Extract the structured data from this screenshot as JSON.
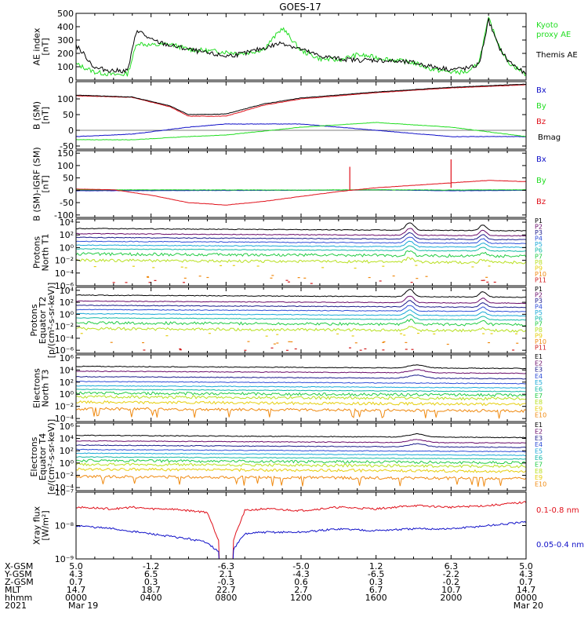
{
  "title": "GOES-17",
  "colors": {
    "black": "#000000",
    "red": "#e0101a",
    "green": "#22dd22",
    "blue": "#1010c8",
    "ch": [
      "#000000",
      "#6a0c6a",
      "#1c1c8c",
      "#2f4fd8",
      "#18a8d8",
      "#14b8a8",
      "#22cc44",
      "#b8e020",
      "#e6cf10",
      "#f08a10",
      "#d01c1c"
    ]
  },
  "chart_data": [
    {
      "type": "line",
      "panel": "ae",
      "ylabel": [
        "AE index",
        "[nT]"
      ],
      "yticks": [
        "500",
        "400",
        "300",
        "200",
        "100",
        "0"
      ],
      "ylim": [
        0,
        500
      ],
      "series": [
        {
          "name": "Kyoto proxy AE",
          "legend": [
            "Kyoto",
            "proxy AE"
          ],
          "x": [
            0,
            1,
            2,
            2.75,
            3.25,
            4,
            5,
            6,
            7,
            8,
            9,
            10,
            11,
            12,
            13,
            14,
            15,
            16,
            17,
            18,
            19,
            20,
            21,
            21.5,
            22,
            22.5,
            23,
            24
          ],
          "y": [
            120,
            60,
            40,
            45,
            280,
            260,
            270,
            230,
            220,
            210,
            200,
            230,
            390,
            220,
            160,
            150,
            190,
            170,
            150,
            130,
            80,
            60,
            60,
            140,
            460,
            280,
            140,
            40
          ]
        },
        {
          "name": "Themis AE",
          "legend": [
            "Themis AE"
          ],
          "x": [
            0,
            0.5,
            1,
            2,
            2.75,
            3.25,
            4,
            5,
            6,
            7,
            8,
            9,
            10,
            11,
            12,
            13,
            14,
            15,
            16,
            17,
            18,
            19,
            20,
            21,
            21.5,
            22,
            22.5,
            23,
            24
          ],
          "y": [
            260,
            180,
            90,
            70,
            70,
            380,
            300,
            260,
            230,
            200,
            180,
            200,
            240,
            280,
            230,
            180,
            160,
            150,
            150,
            140,
            130,
            100,
            80,
            90,
            120,
            450,
            260,
            150,
            40
          ]
        }
      ]
    },
    {
      "type": "line",
      "panel": "b",
      "ylabel": [
        "B (SM)",
        "[nT]"
      ],
      "yticks": [
        "100",
        "50",
        "0",
        "-50"
      ],
      "ylim": [
        -60,
        155
      ],
      "series": [
        {
          "name": "Bx",
          "x": [
            0,
            3,
            6,
            8,
            12,
            16,
            20,
            24
          ],
          "y": [
            -20,
            -12,
            10,
            20,
            20,
            0,
            -20,
            -20
          ]
        },
        {
          "name": "By",
          "x": [
            0,
            3,
            6,
            8,
            12,
            16,
            20,
            24
          ],
          "y": [
            -30,
            -30,
            -20,
            -15,
            10,
            25,
            10,
            -20
          ]
        },
        {
          "name": "Bz",
          "x": [
            0,
            3,
            5,
            6,
            8,
            10,
            12,
            16,
            20,
            24
          ],
          "y": [
            110,
            105,
            75,
            45,
            45,
            80,
            100,
            120,
            135,
            145
          ]
        },
        {
          "name": "Bmag",
          "x": [
            0,
            3,
            5,
            6,
            8,
            10,
            12,
            16,
            20,
            24
          ],
          "y": [
            112,
            106,
            78,
            50,
            52,
            84,
            103,
            122,
            137,
            147
          ]
        }
      ]
    },
    {
      "type": "line",
      "panel": "db",
      "ylabel": [
        "B (SM)-IGRF (SM)",
        "[nT]"
      ],
      "yticks": [
        "150",
        "100",
        "50",
        "0",
        "-50",
        "-100"
      ],
      "ylim": [
        -110,
        160
      ],
      "series": [
        {
          "name": "Bx",
          "x": [
            0,
            12,
            16,
            20,
            24
          ],
          "y": [
            -2,
            0,
            2,
            -2,
            0
          ]
        },
        {
          "name": "By",
          "x": [
            0,
            12,
            16,
            20,
            24
          ],
          "y": [
            2,
            1,
            2,
            1,
            2
          ]
        },
        {
          "name": "Bz",
          "x": [
            0,
            2,
            4,
            6,
            8,
            10,
            12,
            14,
            16,
            18,
            20,
            22,
            24
          ],
          "y": [
            5,
            2,
            -20,
            -50,
            -60,
            -45,
            -25,
            -5,
            10,
            20,
            30,
            40,
            35
          ]
        }
      ]
    },
    {
      "type": "line",
      "panel": "p1",
      "ylabel": [
        "Protons",
        "North T1"
      ],
      "yticks": [
        "10⁴",
        "10²",
        "10⁰",
        "10⁻²",
        "10⁻⁴",
        "10⁻⁶"
      ],
      "ylim": [
        -6,
        4.5
      ],
      "channels": [
        "P1",
        "P2",
        "P3",
        "P4",
        "P5",
        "P6",
        "P7",
        "P8",
        "P9",
        "P10",
        "P11"
      ],
      "levels": [
        3.0,
        2.2,
        1.6,
        1.0,
        0.4,
        -0.2,
        -1.0,
        -2.0,
        -3.0,
        -4.6,
        -5.4
      ]
    },
    {
      "type": "line",
      "panel": "p2",
      "ylabel": [
        "Protons",
        "Equator T2",
        "[p/(cm²-s-sr-keV)]"
      ],
      "yticks": [
        "10⁴",
        "10²",
        "10⁰",
        "10⁻²",
        "10⁻⁴",
        "10⁻⁶"
      ],
      "ylim": [
        -6.5,
        4.5
      ],
      "channels": [
        "P1",
        "P2",
        "P3",
        "P4",
        "P5",
        "P6",
        "P7",
        "P8",
        "P9",
        "P10",
        "P11"
      ],
      "levels": [
        3.2,
        2.2,
        1.5,
        0.8,
        0.1,
        -0.6,
        -1.4,
        -2.4,
        -3.4,
        -4.8,
        -5.8
      ]
    },
    {
      "type": "line",
      "panel": "e1",
      "ylabel": [
        "Electrons",
        "North T3"
      ],
      "yticks": [
        "10⁶",
        "10⁴",
        "10²",
        "10⁰",
        "10⁻²",
        "10⁻⁴"
      ],
      "ylim": [
        -4.5,
        6.5
      ],
      "channels": [
        "E1",
        "E2",
        "E3",
        "E4",
        "E5",
        "E6",
        "E7",
        "E8",
        "E9",
        "E10"
      ],
      "levels": [
        4.6,
        3.8,
        2.9,
        2.1,
        1.4,
        0.8,
        0.2,
        -0.4,
        -1.3,
        -2.4
      ]
    },
    {
      "type": "line",
      "panel": "e2",
      "ylabel": [
        "Electrons",
        "Equator T4",
        "[e/(cm²-s-sr-keV)]"
      ],
      "yticks": [
        "10⁶",
        "10⁴",
        "10²",
        "10⁰",
        "10⁻²",
        "10⁻⁴"
      ],
      "ylim": [
        -4.5,
        6.5
      ],
      "channels": [
        "E1",
        "E2",
        "E3",
        "E4",
        "E5",
        "E6",
        "E7",
        "E8",
        "E9",
        "E10"
      ],
      "levels": [
        4.5,
        3.6,
        2.9,
        2.2,
        1.6,
        1.0,
        0.4,
        -0.2,
        -1.0,
        -2.2
      ]
    },
    {
      "type": "line",
      "panel": "xray",
      "ylabel": [
        "Xray flux",
        "[W/m²]"
      ],
      "yticks": [
        "10⁻⁷",
        "10⁻⁸",
        "10⁻⁹"
      ],
      "ylim": [
        -9,
        -7
      ],
      "series": [
        {
          "name": "0.1-0.8 nm",
          "x": [
            0,
            2,
            3,
            4,
            5,
            6,
            7,
            8,
            9,
            10,
            12,
            14,
            16,
            18,
            20,
            22,
            24
          ],
          "y": [
            -7.45,
            -7.5,
            -7.45,
            -7.5,
            -7.5,
            -7.55,
            -7.6,
            -9,
            -7.55,
            -7.5,
            -7.55,
            -7.45,
            -7.5,
            -7.4,
            -7.45,
            -7.4,
            -7.3
          ]
        },
        {
          "name": "0.05-0.4 nm",
          "x": [
            0,
            2,
            4,
            6,
            7,
            8,
            9,
            10,
            12,
            14,
            16,
            18,
            20,
            22,
            24
          ],
          "y": [
            -8.0,
            -8.1,
            -8.25,
            -8.4,
            -8.5,
            -9,
            -8.25,
            -8.2,
            -8.2,
            -8.1,
            -8.15,
            -8.1,
            -8.1,
            -8.0,
            -7.9
          ]
        }
      ]
    }
  ],
  "axis": {
    "row_labels": [
      "X-GSM",
      "Y-GSM",
      "Z-GSM",
      "MLT",
      "hhmm",
      "2021"
    ],
    "columns": [
      {
        "x": 0,
        "vals": [
          "5.0",
          "4.3",
          "0.7",
          "14.7",
          "0000",
          "Mar 19"
        ]
      },
      {
        "x": 4,
        "vals": [
          "-1.2",
          "6.5",
          "0.3",
          "18.7",
          "0400",
          ""
        ]
      },
      {
        "x": 8,
        "vals": [
          "-6.3",
          "2.1",
          "-0.3",
          "22.7",
          "0800",
          ""
        ]
      },
      {
        "x": 12,
        "vals": [
          "-5.0",
          "-4.3",
          "0.6",
          "2.7",
          "1200",
          ""
        ]
      },
      {
        "x": 16,
        "vals": [
          "1.2",
          "-6.5",
          "0.3",
          "6.7",
          "1600",
          ""
        ]
      },
      {
        "x": 20,
        "vals": [
          "6.3",
          "-2.2",
          "-0.2",
          "10.7",
          "2000",
          ""
        ]
      },
      {
        "x": 24,
        "vals": [
          "5.0",
          "4.3",
          "0.7",
          "14.7",
          "0000",
          "Mar 20"
        ]
      }
    ]
  }
}
